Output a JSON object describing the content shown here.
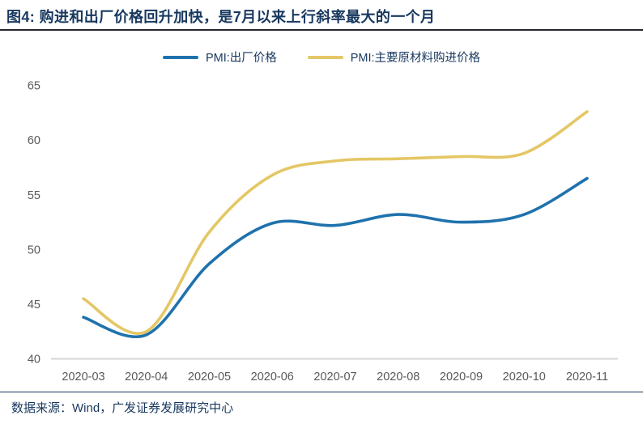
{
  "page": {
    "title": "图4:  购进和出厂价格回升加快，是7月以来上行斜率最大的一个月",
    "source_note": "数据来源：Wind，广发证券发展研究中心"
  },
  "legend": {
    "items": [
      {
        "label": "PMI:出厂价格",
        "color": "#1F72AD"
      },
      {
        "label": "PMI:主要原材料购进价格",
        "color": "#E4C765"
      }
    ]
  },
  "colors": {
    "accent_navy": "#17375E",
    "title_rule": "#25262b",
    "line_blue": "#1F72AD",
    "line_yellow": "#E4C765",
    "axis_line": "#D6D6D6",
    "tick_text": "#595959"
  },
  "chart_data": {
    "type": "line",
    "title": "购进和出厂价格回升加快，是7月以来上行斜率最大的一个月",
    "categories": [
      "2020-03",
      "2020-04",
      "2020-05",
      "2020-06",
      "2020-07",
      "2020-08",
      "2020-09",
      "2020-10",
      "2020-11"
    ],
    "series": [
      {
        "name": "PMI:出厂价格",
        "color": "#1F72AD",
        "values": [
          43.8,
          42.2,
          48.7,
          52.4,
          52.2,
          53.2,
          52.5,
          53.2,
          56.5
        ]
      },
      {
        "name": "PMI:主要原材料购进价格",
        "color": "#E4C765",
        "values": [
          45.5,
          42.5,
          51.6,
          56.8,
          58.1,
          58.3,
          58.5,
          58.8,
          62.6
        ]
      }
    ],
    "xlabel": "",
    "ylabel": "",
    "ylim": [
      40,
      65
    ],
    "yticks": [
      40,
      45,
      50,
      55,
      60,
      65
    ],
    "grid": false,
    "smooth": true,
    "legend_position": "top"
  }
}
